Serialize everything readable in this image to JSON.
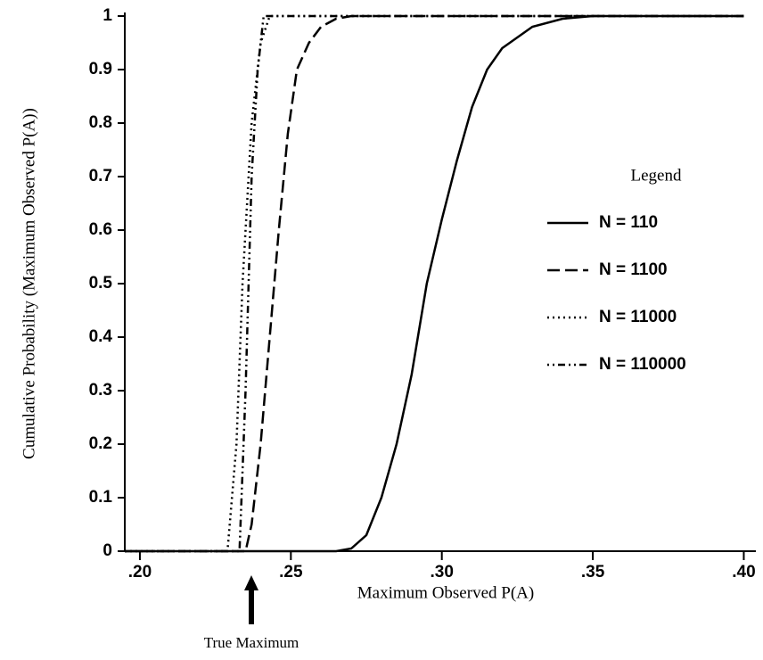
{
  "chart_data": {
    "type": "line",
    "x_label": "Maximum Observed P(A)",
    "y_label": "Cumulative Probability (Maximum Observed P(A))",
    "legend_title": "Legend",
    "annotation": "True Maximum",
    "xlim": [
      0.195,
      0.404
    ],
    "ylim": [
      0,
      1
    ],
    "xticks": [
      {
        "value": 0.2,
        "label": ".20"
      },
      {
        "value": 0.25,
        "label": ".25"
      },
      {
        "value": 0.3,
        "label": ".30"
      },
      {
        "value": 0.35,
        "label": ".35"
      },
      {
        "value": 0.4,
        "label": ".40"
      }
    ],
    "yticks": [
      0,
      0.1,
      0.2,
      0.3,
      0.4,
      0.5,
      0.6,
      0.7,
      0.8,
      0.9,
      1
    ],
    "series": [
      {
        "name": "N = 110",
        "color": "#000000",
        "style": "solid",
        "x": [
          0.195,
          0.265,
          0.27,
          0.275,
          0.28,
          0.285,
          0.29,
          0.295,
          0.3,
          0.305,
          0.31,
          0.315,
          0.32,
          0.33,
          0.34,
          0.35,
          0.4
        ],
        "values": [
          0,
          0,
          0.005,
          0.03,
          0.1,
          0.2,
          0.33,
          0.5,
          0.62,
          0.73,
          0.83,
          0.9,
          0.94,
          0.98,
          0.995,
          1,
          1
        ]
      },
      {
        "name": "N = 1100",
        "color": "#000000",
        "style": "dashed",
        "x": [
          0.195,
          0.235,
          0.237,
          0.24,
          0.243,
          0.246,
          0.249,
          0.252,
          0.256,
          0.26,
          0.265,
          0.27,
          0.4
        ],
        "values": [
          0,
          0,
          0.05,
          0.2,
          0.4,
          0.6,
          0.78,
          0.9,
          0.95,
          0.98,
          0.995,
          1,
          1
        ]
      },
      {
        "name": "N = 11000",
        "color": "#000000",
        "style": "dotted",
        "x": [
          0.195,
          0.229,
          0.232,
          0.234,
          0.237,
          0.24,
          0.243,
          0.4
        ],
        "values": [
          0,
          0,
          0.2,
          0.5,
          0.8,
          0.95,
          1,
          1
        ]
      },
      {
        "name": "N = 110000",
        "color": "#000000",
        "style": "dashdot",
        "x": [
          0.195,
          0.233,
          0.235,
          0.237,
          0.239,
          0.241,
          0.4
        ],
        "values": [
          0,
          0,
          0.3,
          0.7,
          0.9,
          1,
          1
        ]
      }
    ]
  }
}
